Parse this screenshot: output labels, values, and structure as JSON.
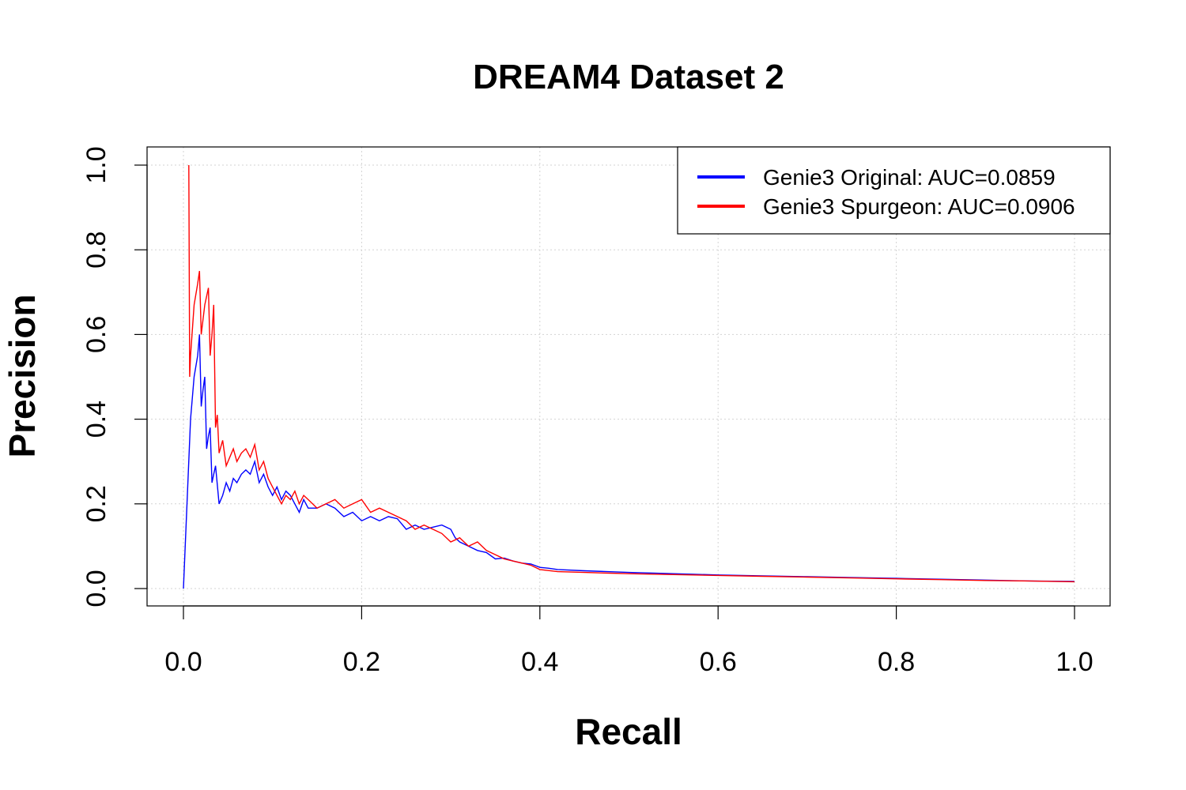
{
  "chart_data": {
    "type": "line",
    "title": "DREAM4 Dataset 2",
    "xlabel": "Recall",
    "ylabel": "Precision",
    "xlim": [
      0.0,
      1.0
    ],
    "ylim": [
      0.0,
      1.0
    ],
    "xticks": [
      "0.0",
      "0.2",
      "0.4",
      "0.6",
      "0.8",
      "1.0"
    ],
    "yticks": [
      "0.0",
      "0.2",
      "0.4",
      "0.6",
      "0.8",
      "1.0"
    ],
    "grid": true,
    "legend_position": "top-right",
    "series": [
      {
        "name": "Genie3 Original: AUC=0.0859",
        "color": "#0000ff",
        "x": [
          0.0,
          0.004,
          0.008,
          0.012,
          0.016,
          0.018,
          0.02,
          0.022,
          0.024,
          0.026,
          0.028,
          0.03,
          0.032,
          0.034,
          0.036,
          0.04,
          0.044,
          0.048,
          0.052,
          0.056,
          0.06,
          0.065,
          0.07,
          0.075,
          0.08,
          0.085,
          0.09,
          0.095,
          0.1,
          0.105,
          0.11,
          0.115,
          0.12,
          0.125,
          0.13,
          0.135,
          0.14,
          0.15,
          0.16,
          0.17,
          0.18,
          0.19,
          0.2,
          0.21,
          0.22,
          0.23,
          0.24,
          0.25,
          0.26,
          0.27,
          0.28,
          0.29,
          0.3,
          0.305,
          0.31,
          0.32,
          0.33,
          0.34,
          0.35,
          0.36,
          0.37,
          0.38,
          0.39,
          0.4,
          0.41,
          0.42,
          0.45,
          0.5,
          0.55,
          0.6,
          0.65,
          0.7,
          0.75,
          0.8,
          0.85,
          0.9,
          0.95,
          1.0
        ],
        "y": [
          0.0,
          0.2,
          0.4,
          0.5,
          0.55,
          0.6,
          0.43,
          0.47,
          0.5,
          0.33,
          0.36,
          0.38,
          0.25,
          0.27,
          0.29,
          0.2,
          0.22,
          0.25,
          0.23,
          0.26,
          0.25,
          0.27,
          0.28,
          0.27,
          0.3,
          0.25,
          0.27,
          0.24,
          0.22,
          0.24,
          0.21,
          0.23,
          0.22,
          0.2,
          0.18,
          0.21,
          0.19,
          0.19,
          0.2,
          0.19,
          0.17,
          0.18,
          0.16,
          0.17,
          0.16,
          0.17,
          0.165,
          0.14,
          0.15,
          0.14,
          0.145,
          0.15,
          0.14,
          0.12,
          0.11,
          0.1,
          0.09,
          0.085,
          0.07,
          0.072,
          0.065,
          0.06,
          0.058,
          0.05,
          0.048,
          0.045,
          0.042,
          0.038,
          0.035,
          0.032,
          0.03,
          0.028,
          0.026,
          0.024,
          0.022,
          0.02,
          0.018,
          0.017
        ]
      },
      {
        "name": "Genie3 Spurgeon: AUC=0.0906",
        "color": "#ff0000",
        "x": [
          0.006,
          0.007,
          0.008,
          0.012,
          0.016,
          0.018,
          0.02,
          0.024,
          0.028,
          0.03,
          0.032,
          0.034,
          0.036,
          0.038,
          0.04,
          0.044,
          0.048,
          0.052,
          0.056,
          0.06,
          0.065,
          0.07,
          0.075,
          0.08,
          0.085,
          0.09,
          0.095,
          0.1,
          0.105,
          0.11,
          0.115,
          0.12,
          0.125,
          0.13,
          0.135,
          0.14,
          0.15,
          0.16,
          0.17,
          0.18,
          0.19,
          0.2,
          0.21,
          0.22,
          0.23,
          0.24,
          0.25,
          0.26,
          0.27,
          0.28,
          0.29,
          0.3,
          0.31,
          0.32,
          0.33,
          0.34,
          0.35,
          0.36,
          0.37,
          0.38,
          0.39,
          0.4,
          0.42,
          0.45,
          0.5,
          0.55,
          0.6,
          0.65,
          0.7,
          0.75,
          0.8,
          0.85,
          0.9,
          0.95,
          1.0
        ],
        "y": [
          1.0,
          0.5,
          0.55,
          0.67,
          0.72,
          0.75,
          0.6,
          0.67,
          0.71,
          0.55,
          0.6,
          0.67,
          0.38,
          0.41,
          0.32,
          0.35,
          0.29,
          0.31,
          0.33,
          0.3,
          0.32,
          0.33,
          0.31,
          0.34,
          0.28,
          0.3,
          0.26,
          0.24,
          0.22,
          0.2,
          0.22,
          0.21,
          0.23,
          0.2,
          0.22,
          0.21,
          0.19,
          0.2,
          0.21,
          0.19,
          0.2,
          0.21,
          0.18,
          0.19,
          0.18,
          0.17,
          0.16,
          0.14,
          0.15,
          0.14,
          0.13,
          0.11,
          0.12,
          0.1,
          0.11,
          0.09,
          0.08,
          0.07,
          0.065,
          0.06,
          0.055,
          0.045,
          0.04,
          0.038,
          0.035,
          0.033,
          0.031,
          0.029,
          0.027,
          0.025,
          0.023,
          0.021,
          0.019,
          0.018,
          0.016
        ]
      }
    ]
  }
}
